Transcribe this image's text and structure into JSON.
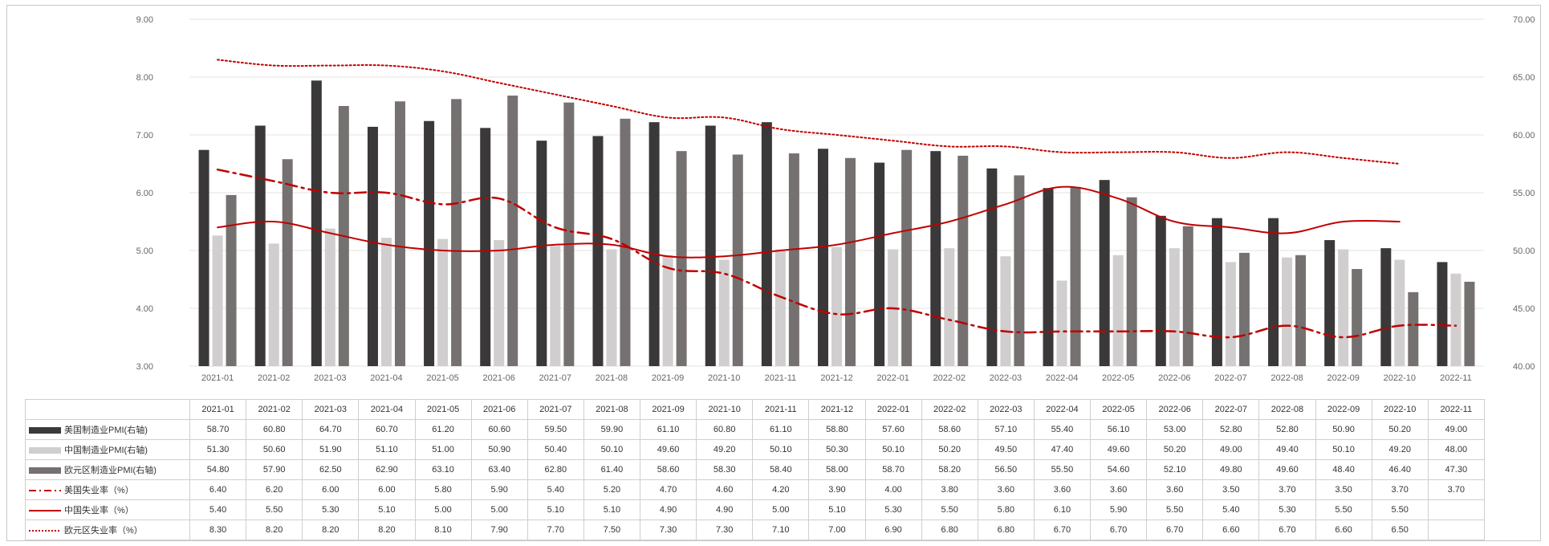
{
  "chart_data": {
    "type": "bar",
    "categories": [
      "2021-01",
      "2021-02",
      "2021-03",
      "2021-04",
      "2021-05",
      "2021-06",
      "2021-07",
      "2021-08",
      "2021-09",
      "2021-10",
      "2021-11",
      "2021-12",
      "2022-01",
      "2022-02",
      "2022-03",
      "2022-04",
      "2022-05",
      "2022-06",
      "2022-07",
      "2022-08",
      "2022-09",
      "2022-10",
      "2022-11"
    ],
    "left_axis": {
      "ylim": [
        3,
        9
      ],
      "ticks": [
        "3.00",
        "4.00",
        "5.00",
        "6.00",
        "7.00",
        "8.00",
        "9.00"
      ]
    },
    "right_axis": {
      "ylim": [
        40,
        70
      ],
      "ticks": [
        "40.00",
        "45.00",
        "50.00",
        "55.00",
        "60.00",
        "65.00",
        "70.00"
      ]
    },
    "grid": true,
    "series": [
      {
        "name": "美国制造业PMI(右轴)",
        "kind": "bar",
        "axis": "right",
        "color": "#3a3838",
        "values": [
          58.7,
          60.8,
          64.7,
          60.7,
          61.2,
          60.6,
          59.5,
          59.9,
          61.1,
          60.8,
          61.1,
          58.8,
          57.6,
          58.6,
          57.1,
          55.4,
          56.1,
          53.0,
          52.8,
          52.8,
          50.9,
          50.2,
          49.0
        ],
        "labels": [
          "58.70",
          "60.80",
          "64.70",
          "60.70",
          "61.20",
          "60.60",
          "59.50",
          "59.90",
          "61.10",
          "60.80",
          "61.10",
          "58.80",
          "57.60",
          "58.60",
          "57.10",
          "55.40",
          "56.10",
          "53.00",
          "52.80",
          "52.80",
          "50.90",
          "50.20",
          "49.00"
        ]
      },
      {
        "name": "中国制造业PMI(右轴)",
        "kind": "bar",
        "axis": "right",
        "color": "#d0cece",
        "values": [
          51.3,
          50.6,
          51.9,
          51.1,
          51.0,
          50.9,
          50.4,
          50.1,
          49.6,
          49.2,
          50.1,
          50.3,
          50.1,
          50.2,
          49.5,
          47.4,
          49.6,
          50.2,
          49.0,
          49.4,
          50.1,
          49.2,
          48.0
        ],
        "labels": [
          "51.30",
          "50.60",
          "51.90",
          "51.10",
          "51.00",
          "50.90",
          "50.40",
          "50.10",
          "49.60",
          "49.20",
          "50.10",
          "50.30",
          "50.10",
          "50.20",
          "49.50",
          "47.40",
          "49.60",
          "50.20",
          "49.00",
          "49.40",
          "50.10",
          "49.20",
          "48.00"
        ]
      },
      {
        "name": "欧元区制造业PMI(右轴)",
        "kind": "bar",
        "axis": "right",
        "color": "#767171",
        "values": [
          54.8,
          57.9,
          62.5,
          62.9,
          63.1,
          63.4,
          62.8,
          61.4,
          58.6,
          58.3,
          58.4,
          58.0,
          58.7,
          58.2,
          56.5,
          55.5,
          54.6,
          52.1,
          49.8,
          49.6,
          48.4,
          46.4,
          47.3
        ],
        "labels": [
          "54.80",
          "57.90",
          "62.50",
          "62.90",
          "63.10",
          "63.40",
          "62.80",
          "61.40",
          "58.60",
          "58.30",
          "58.40",
          "58.00",
          "58.70",
          "58.20",
          "56.50",
          "55.50",
          "54.60",
          "52.10",
          "49.80",
          "49.60",
          "48.40",
          "46.40",
          "47.30"
        ]
      },
      {
        "name": "美国失业率（%）",
        "kind": "line",
        "style": "dashdot",
        "axis": "left",
        "color": "#c00000",
        "values": [
          6.4,
          6.2,
          6.0,
          6.0,
          5.8,
          5.9,
          5.4,
          5.2,
          4.7,
          4.6,
          4.2,
          3.9,
          4.0,
          3.8,
          3.6,
          3.6,
          3.6,
          3.6,
          3.5,
          3.7,
          3.5,
          3.7,
          3.7
        ],
        "labels": [
          "6.40",
          "6.20",
          "6.00",
          "6.00",
          "5.80",
          "5.90",
          "5.40",
          "5.20",
          "4.70",
          "4.60",
          "4.20",
          "3.90",
          "4.00",
          "3.80",
          "3.60",
          "3.60",
          "3.60",
          "3.60",
          "3.50",
          "3.70",
          "3.50",
          "3.70",
          "3.70"
        ]
      },
      {
        "name": "中国失业率（%）",
        "kind": "line",
        "style": "solid",
        "axis": "left",
        "color": "#c00000",
        "values": [
          5.4,
          5.5,
          5.3,
          5.1,
          5.0,
          5.0,
          5.1,
          5.1,
          4.9,
          4.9,
          5.0,
          5.1,
          5.3,
          5.5,
          5.8,
          6.1,
          5.9,
          5.5,
          5.4,
          5.3,
          5.5,
          5.5,
          null
        ],
        "labels": [
          "5.40",
          "5.50",
          "5.30",
          "5.10",
          "5.00",
          "5.00",
          "5.10",
          "5.10",
          "4.90",
          "4.90",
          "5.00",
          "5.10",
          "5.30",
          "5.50",
          "5.80",
          "6.10",
          "5.90",
          "5.50",
          "5.40",
          "5.30",
          "5.50",
          "5.50",
          ""
        ]
      },
      {
        "name": "欧元区失业率（%）",
        "kind": "line",
        "style": "dotted",
        "axis": "left",
        "color": "#c00000",
        "values": [
          8.3,
          8.2,
          8.2,
          8.2,
          8.1,
          7.9,
          7.7,
          7.5,
          7.3,
          7.3,
          7.1,
          7.0,
          6.9,
          6.8,
          6.8,
          6.7,
          6.7,
          6.7,
          6.6,
          6.7,
          6.6,
          6.5,
          null
        ],
        "labels": [
          "8.30",
          "8.20",
          "8.20",
          "8.20",
          "8.10",
          "7.90",
          "7.70",
          "7.50",
          "7.30",
          "7.30",
          "7.10",
          "7.00",
          "6.90",
          "6.80",
          "6.80",
          "6.70",
          "6.70",
          "6.70",
          "6.60",
          "6.70",
          "6.60",
          "6.50",
          ""
        ]
      }
    ]
  }
}
